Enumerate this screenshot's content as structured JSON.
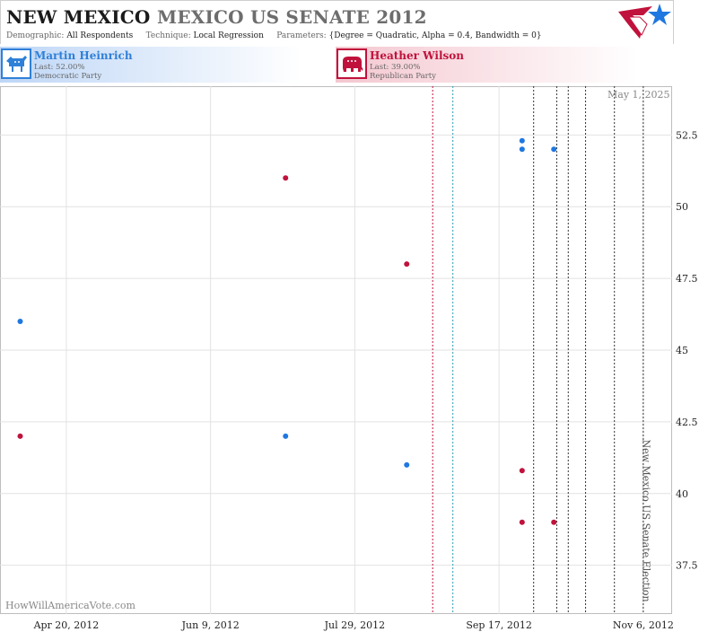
{
  "header": {
    "state": "NEW MEXICO",
    "race": "MEXICO US SENATE 2012",
    "demographic_label": "Demographic:",
    "demographic": "All Respondents",
    "technique_label": "Technique:",
    "technique": "Local Regression",
    "parameters_label": "Parameters:",
    "parameters": "{Degree = Quadratic, Alpha = 0.4, Bandwidth = 0}",
    "logo_icon": "star-flag-logo-icon"
  },
  "candidates": [
    {
      "name": "Martin Heinrich",
      "last": "Last: 52.00%",
      "party": "Democratic Party",
      "color": "#2f80d8",
      "icon": "donkey-icon"
    },
    {
      "name": "Heather Wilson",
      "last": "Last: 39.00%",
      "party": "Republican Party",
      "color": "#c0123c",
      "icon": "elephant-icon"
    }
  ],
  "watermark": "HowWillAmericaVote.com",
  "datestamp": "May 1, 2025",
  "election_label": "New Mexico US Senate Election",
  "chart_data": {
    "type": "scatter",
    "title": "",
    "xlabel": "",
    "ylabel": "",
    "x_ticks": [
      "2012-04-20",
      "2012-06-09",
      "2012-07-29",
      "2012-09-17",
      "2012-11-06"
    ],
    "x_tick_labels": [
      "Apr 20, 2012",
      "Jun 9, 2012",
      "Jul 29, 2012",
      "Sep 17, 2012",
      "Nov 6, 2012"
    ],
    "xlim": [
      "2012-03-28",
      "2012-11-16"
    ],
    "ylim": [
      35.8,
      54.2
    ],
    "y_ticks": [
      37.5,
      40,
      42.5,
      45,
      47.5,
      50,
      52.5
    ],
    "y_tick_labels": [
      "37.5",
      "40",
      "42.5",
      "45",
      "47.5",
      "50",
      "52.5"
    ],
    "grid": true,
    "series": [
      {
        "name": "Martin Heinrich",
        "color": "#1f77e0",
        "points": [
          [
            "2012-04-04",
            46
          ],
          [
            "2012-07-05",
            42
          ],
          [
            "2012-08-16",
            41
          ],
          [
            "2012-09-25",
            52.3
          ],
          [
            "2012-09-25",
            52
          ],
          [
            "2012-10-06",
            52
          ]
        ]
      },
      {
        "name": "Heather Wilson",
        "color": "#c0123c",
        "points": [
          [
            "2012-04-04",
            42
          ],
          [
            "2012-07-05",
            51
          ],
          [
            "2012-08-16",
            48
          ],
          [
            "2012-09-25",
            40.8
          ],
          [
            "2012-09-25",
            39
          ],
          [
            "2012-10-06",
            39
          ]
        ]
      }
    ],
    "vlines": [
      {
        "date": "2012-08-25",
        "color": "#c0123c",
        "style": "dotted"
      },
      {
        "date": "2012-09-01",
        "color": "#2a9fb0",
        "style": "dotted"
      },
      {
        "date": "2012-09-29",
        "color": "#333333",
        "style": "dotted"
      },
      {
        "date": "2012-10-07",
        "color": "#333333",
        "style": "dotted"
      },
      {
        "date": "2012-10-11",
        "color": "#333333",
        "style": "dotted"
      },
      {
        "date": "2012-10-17",
        "color": "#333333",
        "style": "dotted"
      },
      {
        "date": "2012-10-27",
        "color": "#333333",
        "style": "dotted"
      },
      {
        "date": "2012-11-06",
        "color": "#333333",
        "style": "dotted"
      }
    ]
  }
}
